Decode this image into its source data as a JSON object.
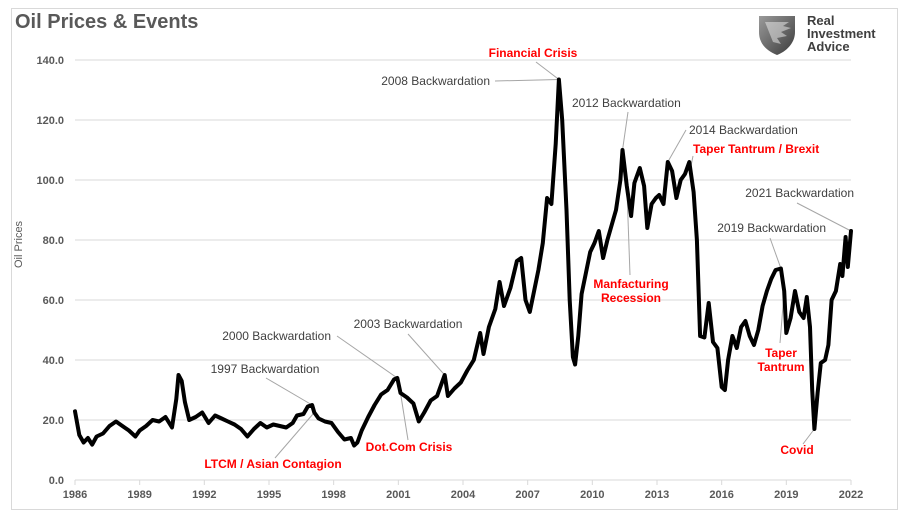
{
  "title": "Oil Prices & Events",
  "logo": {
    "icon": "eagle-shield-icon",
    "lines": [
      "Real",
      "Investment",
      "Advice"
    ]
  },
  "chart_data": {
    "type": "line",
    "title": "Oil Prices & Events",
    "xlabel": "",
    "ylabel": "Oil Prices",
    "xlim": [
      1986,
      2022
    ],
    "ylim": [
      0,
      140
    ],
    "grid": true,
    "legend": "none",
    "x_ticks": [
      "1986",
      "1989",
      "1992",
      "1995",
      "1998",
      "2001",
      "2004",
      "2007",
      "2010",
      "2013",
      "2016",
      "2019",
      "2022"
    ],
    "y_ticks": [
      "0.0",
      "20.0",
      "40.0",
      "60.0",
      "80.0",
      "100.0",
      "120.0",
      "140.0"
    ],
    "series": [
      {
        "name": "Oil Price",
        "color": "#000000",
        "points": [
          [
            1986.0,
            22.9
          ],
          [
            1986.2,
            15.0
          ],
          [
            1986.4,
            12.5
          ],
          [
            1986.6,
            14.0
          ],
          [
            1986.8,
            11.8
          ],
          [
            1987.0,
            14.5
          ],
          [
            1987.3,
            15.5
          ],
          [
            1987.6,
            18.0
          ],
          [
            1987.9,
            19.5
          ],
          [
            1988.2,
            18.0
          ],
          [
            1988.5,
            16.5
          ],
          [
            1988.8,
            14.5
          ],
          [
            1989.0,
            16.5
          ],
          [
            1989.3,
            18.0
          ],
          [
            1989.6,
            20.0
          ],
          [
            1989.9,
            19.5
          ],
          [
            1990.2,
            21.0
          ],
          [
            1990.5,
            17.5
          ],
          [
            1990.7,
            27.0
          ],
          [
            1990.8,
            35.0
          ],
          [
            1990.95,
            33.0
          ],
          [
            1991.1,
            26.0
          ],
          [
            1991.3,
            20.0
          ],
          [
            1991.6,
            21.0
          ],
          [
            1991.9,
            22.5
          ],
          [
            1992.2,
            19.0
          ],
          [
            1992.5,
            21.5
          ],
          [
            1992.8,
            20.5
          ],
          [
            1993.1,
            19.5
          ],
          [
            1993.4,
            18.5
          ],
          [
            1993.7,
            17.0
          ],
          [
            1994.0,
            14.5
          ],
          [
            1994.3,
            17.0
          ],
          [
            1994.6,
            19.0
          ],
          [
            1994.9,
            17.5
          ],
          [
            1995.2,
            18.5
          ],
          [
            1995.5,
            18.0
          ],
          [
            1995.8,
            17.5
          ],
          [
            1996.1,
            19.0
          ],
          [
            1996.3,
            21.5
          ],
          [
            1996.6,
            22.0
          ],
          [
            1996.8,
            24.5
          ],
          [
            1997.0,
            25.0
          ],
          [
            1997.1,
            22.5
          ],
          [
            1997.3,
            20.5
          ],
          [
            1997.6,
            19.5
          ],
          [
            1997.9,
            19.0
          ],
          [
            1998.2,
            16.0
          ],
          [
            1998.5,
            13.5
          ],
          [
            1998.8,
            14.0
          ],
          [
            1998.95,
            11.5
          ],
          [
            1999.1,
            12.5
          ],
          [
            1999.3,
            16.5
          ],
          [
            1999.6,
            21.0
          ],
          [
            1999.9,
            25.0
          ],
          [
            2000.2,
            28.5
          ],
          [
            2000.5,
            30.0
          ],
          [
            2000.8,
            33.5
          ],
          [
            2000.95,
            34.0
          ],
          [
            2001.1,
            29.0
          ],
          [
            2001.4,
            27.5
          ],
          [
            2001.7,
            25.5
          ],
          [
            2001.95,
            19.5
          ],
          [
            2002.2,
            22.5
          ],
          [
            2002.5,
            26.5
          ],
          [
            2002.8,
            28.0
          ],
          [
            2003.0,
            32.0
          ],
          [
            2003.15,
            35.0
          ],
          [
            2003.3,
            28.0
          ],
          [
            2003.6,
            30.5
          ],
          [
            2003.9,
            32.5
          ],
          [
            2004.2,
            36.5
          ],
          [
            2004.5,
            40.0
          ],
          [
            2004.8,
            49.0
          ],
          [
            2004.95,
            42.0
          ],
          [
            2005.2,
            51.0
          ],
          [
            2005.5,
            57.0
          ],
          [
            2005.7,
            66.0
          ],
          [
            2005.9,
            58.0
          ],
          [
            2006.2,
            64.0
          ],
          [
            2006.5,
            73.0
          ],
          [
            2006.7,
            74.0
          ],
          [
            2006.9,
            60.0
          ],
          [
            2007.1,
            56.0
          ],
          [
            2007.3,
            63.0
          ],
          [
            2007.5,
            70.0
          ],
          [
            2007.7,
            79.0
          ],
          [
            2007.9,
            94.0
          ],
          [
            2008.1,
            92.0
          ],
          [
            2008.3,
            112.0
          ],
          [
            2008.45,
            133.5
          ],
          [
            2008.6,
            120.0
          ],
          [
            2008.8,
            90.0
          ],
          [
            2008.95,
            60.0
          ],
          [
            2009.1,
            41.0
          ],
          [
            2009.2,
            38.5
          ],
          [
            2009.35,
            48.0
          ],
          [
            2009.5,
            62.0
          ],
          [
            2009.7,
            69.0
          ],
          [
            2009.9,
            76.0
          ],
          [
            2010.1,
            79.0
          ],
          [
            2010.3,
            83.0
          ],
          [
            2010.5,
            74.0
          ],
          [
            2010.7,
            80.0
          ],
          [
            2010.9,
            85.0
          ],
          [
            2011.1,
            90.0
          ],
          [
            2011.3,
            100.0
          ],
          [
            2011.4,
            110.0
          ],
          [
            2011.6,
            98.0
          ],
          [
            2011.8,
            88.0
          ],
          [
            2011.95,
            99.0
          ],
          [
            2012.2,
            104.0
          ],
          [
            2012.4,
            98.0
          ],
          [
            2012.55,
            84.0
          ],
          [
            2012.75,
            92.0
          ],
          [
            2012.95,
            94.0
          ],
          [
            2013.1,
            95.0
          ],
          [
            2013.3,
            92.0
          ],
          [
            2013.5,
            106.0
          ],
          [
            2013.7,
            103.0
          ],
          [
            2013.9,
            94.0
          ],
          [
            2014.1,
            100.0
          ],
          [
            2014.3,
            102.0
          ],
          [
            2014.5,
            106.0
          ],
          [
            2014.7,
            96.0
          ],
          [
            2014.85,
            80.0
          ],
          [
            2015.0,
            48.0
          ],
          [
            2015.2,
            47.5
          ],
          [
            2015.4,
            59.0
          ],
          [
            2015.6,
            46.0
          ],
          [
            2015.8,
            44.0
          ],
          [
            2016.0,
            31.0
          ],
          [
            2016.15,
            30.0
          ],
          [
            2016.3,
            40.0
          ],
          [
            2016.5,
            48.0
          ],
          [
            2016.7,
            44.0
          ],
          [
            2016.9,
            51.0
          ],
          [
            2017.1,
            53.0
          ],
          [
            2017.3,
            48.0
          ],
          [
            2017.5,
            45.0
          ],
          [
            2017.7,
            50.0
          ],
          [
            2017.9,
            58.0
          ],
          [
            2018.1,
            63.0
          ],
          [
            2018.3,
            67.0
          ],
          [
            2018.5,
            70.0
          ],
          [
            2018.75,
            70.5
          ],
          [
            2018.9,
            63.0
          ],
          [
            2019.0,
            49.0
          ],
          [
            2019.2,
            54.0
          ],
          [
            2019.4,
            63.0
          ],
          [
            2019.6,
            56.0
          ],
          [
            2019.8,
            54.0
          ],
          [
            2019.95,
            61.0
          ],
          [
            2020.1,
            51.0
          ],
          [
            2020.2,
            30.0
          ],
          [
            2020.3,
            17.0
          ],
          [
            2020.45,
            29.0
          ],
          [
            2020.6,
            39.0
          ],
          [
            2020.8,
            40.0
          ],
          [
            2020.95,
            45.0
          ],
          [
            2021.1,
            60.0
          ],
          [
            2021.3,
            63.0
          ],
          [
            2021.5,
            72.0
          ],
          [
            2021.6,
            68.0
          ],
          [
            2021.75,
            81.0
          ],
          [
            2021.85,
            71.0
          ],
          [
            2022.0,
            83.0
          ]
        ]
      }
    ],
    "annotations": [
      {
        "text": "Financial Crisis",
        "color": "red",
        "x": 2008.45,
        "y": 133.5
      },
      {
        "text": "2008 Backwardation",
        "color": "gray",
        "x": 2008.45,
        "y": 133.5
      },
      {
        "text": "2012 Backwardation",
        "color": "gray",
        "x": 2011.4,
        "y": 110.0
      },
      {
        "text": "2014 Backwardation",
        "color": "gray",
        "x": 2013.5,
        "y": 106.0
      },
      {
        "text": "Taper Tantrum / Brexit",
        "color": "red",
        "x": 2014.5,
        "y": 102.0
      },
      {
        "text": "2021 Backwardation",
        "color": "gray",
        "x": 2022.0,
        "y": 83.0
      },
      {
        "text": "2019 Backwardation",
        "color": "gray",
        "x": 2018.75,
        "y": 70.5
      },
      {
        "text": "Manfacturing Recession",
        "color": "red",
        "x": 2011.6,
        "y": 98.0
      },
      {
        "text": "Taper Tantrum",
        "color": "red",
        "x": 2018.9,
        "y": 63.0
      },
      {
        "text": "Covid",
        "color": "red",
        "x": 2020.3,
        "y": 17.0
      },
      {
        "text": "2000 Backwardation",
        "color": "gray",
        "x": 2000.95,
        "y": 34.0
      },
      {
        "text": "2003 Backwardation",
        "color": "gray",
        "x": 2003.15,
        "y": 35.0
      },
      {
        "text": "1997 Backwardation",
        "color": "gray",
        "x": 1997.0,
        "y": 25.0
      },
      {
        "text": "LTCM / Asian Contagion",
        "color": "red",
        "x": 1997.1,
        "y": 22.5
      },
      {
        "text": "Dot.Com Crisis",
        "color": "red",
        "x": 2001.1,
        "y": 29.0
      }
    ]
  }
}
